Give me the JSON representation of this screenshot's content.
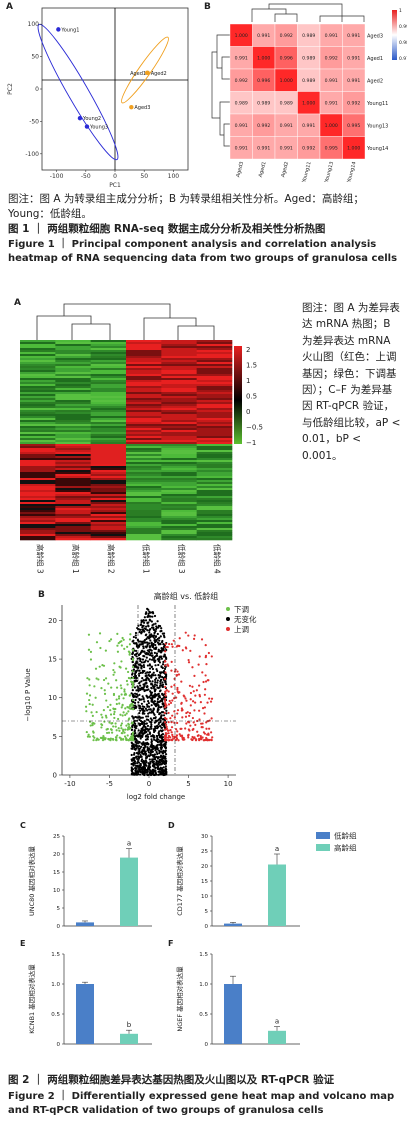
{
  "figure1": {
    "panelA": {
      "label": "A",
      "xlabel": "PC1",
      "ylabel": "PC2",
      "xticks": [
        "-100",
        "-50",
        "0",
        "50",
        "100"
      ],
      "yticks": [
        "100",
        "50",
        "0",
        "-50",
        "-100"
      ],
      "points": [
        {
          "label": "Young1",
          "x": -97,
          "y": 92,
          "group": "young"
        },
        {
          "label": "Young2",
          "x": -60,
          "y": -45,
          "group": "young"
        },
        {
          "label": "Young3",
          "x": -48,
          "y": -58,
          "group": "young"
        },
        {
          "label": "Aged1",
          "x": 55,
          "y": 25,
          "group": "aged"
        },
        {
          "label": "Aged2",
          "x": 56,
          "y": 25,
          "group": "aged"
        },
        {
          "label": "Aged3",
          "x": 28,
          "y": -28,
          "group": "aged"
        }
      ],
      "colors": {
        "young": "#2b2bd6",
        "aged": "#f0a020"
      }
    },
    "panelB": {
      "label": "B",
      "rows": [
        "Aged3",
        "Aged1",
        "Aged2",
        "Young11",
        "Young13",
        "Young14"
      ],
      "cols": [
        "Aged3",
        "Aged1",
        "Aged2",
        "Young11",
        "Young13",
        "Young14"
      ],
      "matrix": [
        [
          "1.000",
          "0.991",
          "0.992",
          "0.989",
          "0.991",
          "0.991"
        ],
        [
          "0.991",
          "1.000",
          "0.996",
          "0.989",
          "0.992",
          "0.991"
        ],
        [
          "0.992",
          "0.996",
          "1.000",
          "0.989",
          "0.991",
          "0.991"
        ],
        [
          "0.989",
          "0.989",
          "0.989",
          "1.000",
          "0.991",
          "0.992"
        ],
        [
          "0.991",
          "0.992",
          "0.991",
          "0.991",
          "1.000",
          "0.995"
        ],
        [
          "0.991",
          "0.991",
          "0.991",
          "0.992",
          "0.995",
          "1.000"
        ]
      ],
      "scale": [
        "1",
        "0.99",
        "0.98",
        "0.97"
      ]
    },
    "note": "图注：图 A 为转录组主成分分析；B 为转录组相关性分析。Aged：高龄组；Young：低龄组。",
    "caption_cn": "图 1  ｜ 两组颗粒细胞 RNA-seq 数据主成分分析及相关性分析热图",
    "caption_en": "Figure 1  ｜  Principal component analysis and correlation analysis heatmap of RNA sequencing data from two groups of granulosa cells"
  },
  "figure2": {
    "panelA": {
      "label": "A",
      "columns": [
        "高龄组 3",
        "高龄组 1",
        "高龄组 2",
        "低龄组 1",
        "低龄组 3",
        "低龄组 4"
      ],
      "scale": [
        "2",
        "1.5",
        "1",
        "0.5",
        "0",
        "−0.5",
        "−1"
      ]
    },
    "side_note": "图注：图 A 为差异表达 mRNA 热图；B 为差异表达 mRNA 火山图（红色：上调基因；绿色：下调基因）；C–F 为差异基因 RT-qPCR 验证，与低龄组比较，aP < 0.01，bP < 0.001。",
    "panelB": {
      "label": "B",
      "title": "高龄组 vs. 低龄组",
      "xlabel": "log2 fold change",
      "ylabel": "−log10 P Value",
      "xticks": [
        "-10",
        "-5",
        "0",
        "5",
        "10"
      ],
      "yticks": [
        "0",
        "5",
        "10",
        "15",
        "20"
      ],
      "legend": [
        {
          "label": "下调",
          "color": "#6cc04a"
        },
        {
          "label": "无变化",
          "color": "#000000"
        },
        {
          "label": "上调",
          "color": "#e03030"
        }
      ]
    },
    "bars": {
      "legend": [
        {
          "label": "低龄组",
          "color": "#4a7fc8"
        },
        {
          "label": "高龄组",
          "color": "#6fcfb8"
        }
      ],
      "panels": [
        {
          "label": "C",
          "ylabel": "UNC80 基因相对表达量",
          "yticks": [
            "0",
            "5",
            "10",
            "15",
            "20",
            "25"
          ],
          "ymax": 25,
          "values": [
            1,
            19
          ],
          "errors": [
            0.4,
            2.5
          ],
          "sig": "a"
        },
        {
          "label": "D",
          "ylabel": "CD177 基因相对表达量",
          "yticks": [
            "0",
            "5",
            "10",
            "15",
            "20",
            "25",
            "30"
          ],
          "ymax": 30,
          "values": [
            0.8,
            20.5
          ],
          "errors": [
            0.4,
            3.5
          ],
          "sig": "a"
        },
        {
          "label": "E",
          "ylabel": "KCNB1 基因相对表达量",
          "yticks": [
            "0",
            "0.5",
            "1.0",
            "1.5"
          ],
          "ymax": 1.5,
          "values": [
            1.0,
            0.17
          ],
          "errors": [
            0.03,
            0.06
          ],
          "sig": "b"
        },
        {
          "label": "F",
          "ylabel": "NGEF 基因相对表达量",
          "yticks": [
            "0",
            "0.5",
            "1.0",
            "1.5"
          ],
          "ymax": 1.5,
          "values": [
            1.0,
            0.22
          ],
          "errors": [
            0.13,
            0.07
          ],
          "sig": "a"
        }
      ]
    },
    "caption_cn": "图 2  ｜ 两组颗粒细胞差异表达基因热图及火山图以及 RT-qPCR 验证",
    "caption_en": "Figure 2  ｜  Differentially expressed gene heat map and volcano map and RT-qPCR validation of two groups of granulosa cells"
  }
}
